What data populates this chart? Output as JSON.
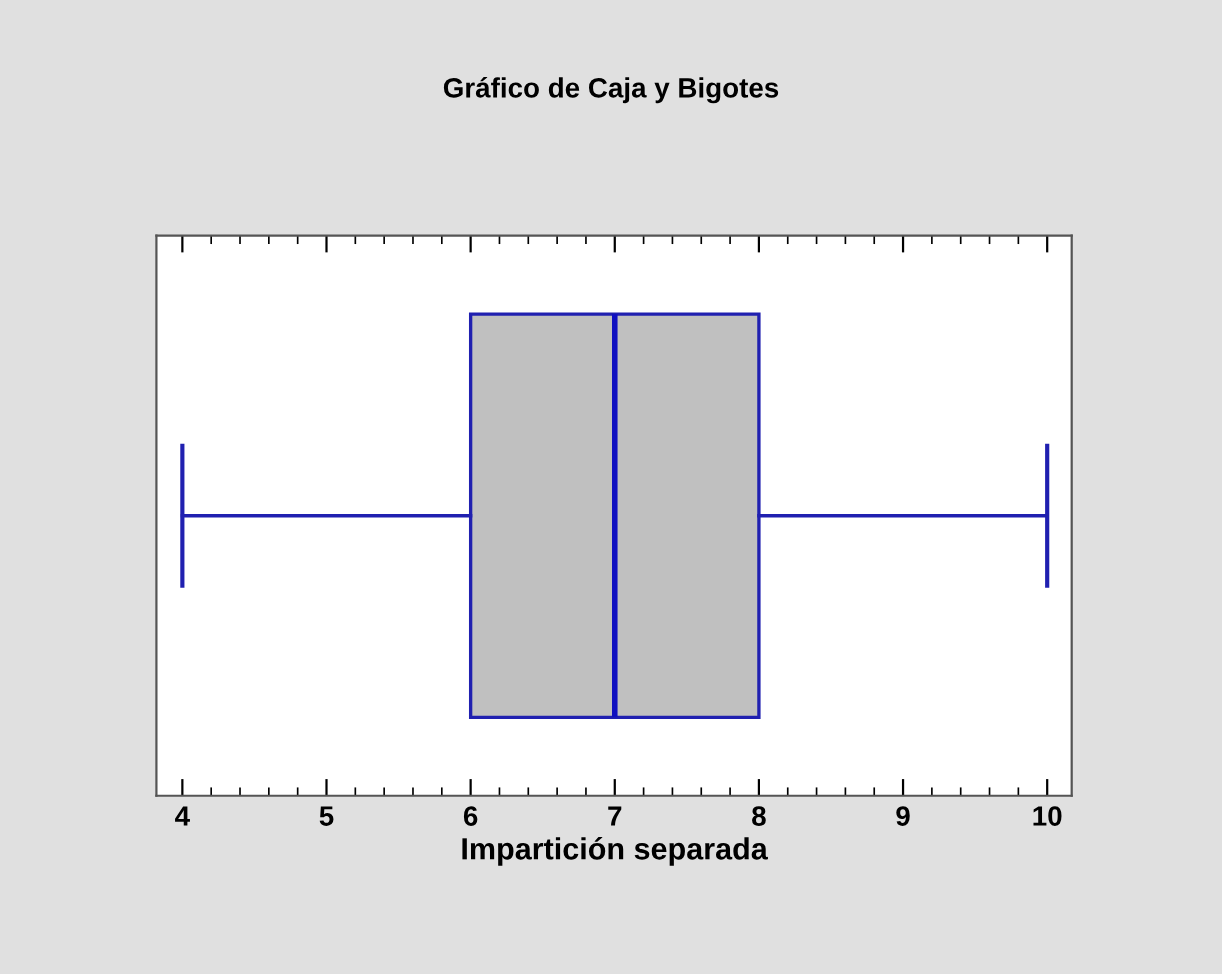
{
  "chart_data": {
    "type": "box",
    "title": "Gráfico de Caja y Bigotes",
    "xlabel": "Impartición separada",
    "orientation": "horizontal",
    "categories": [
      null
    ],
    "tick_labels": "x",
    "series": [
      {
        "color": "#c0c0c0",
        "boxes": [
          {
            "low": 4,
            "q1": 6,
            "median": 7,
            "q3": 8,
            "high": 10
          }
        ]
      }
    ],
    "xlim": [
      3.82,
      10.17
    ],
    "xticks": [
      4,
      5,
      6,
      7,
      8,
      9,
      10
    ],
    "grid": false
  }
}
